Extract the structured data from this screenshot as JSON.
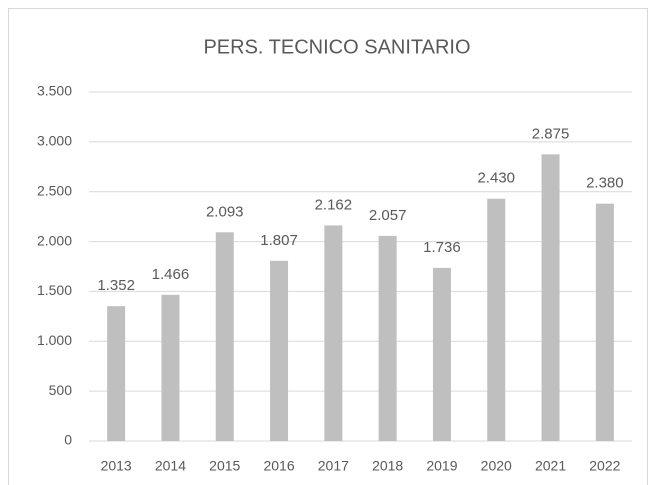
{
  "chart_data": {
    "type": "bar",
    "title": "PERS. TECNICO SANITARIO",
    "categories": [
      "2013",
      "2014",
      "2015",
      "2016",
      "2017",
      "2018",
      "2019",
      "2020",
      "2021",
      "2022"
    ],
    "values": [
      1352,
      1466,
      2093,
      1807,
      2162,
      2057,
      1736,
      2430,
      2875,
      2380
    ],
    "value_labels": [
      "1.352",
      "1.466",
      "2.093",
      "1.807",
      "2.162",
      "2.057",
      "1.736",
      "2.430",
      "2.875",
      "2.380"
    ],
    "color": "#bfbfbf",
    "ylim": [
      0,
      3500
    ],
    "yticks": [
      0,
      500,
      {
        "value": 1000,
        "label": "1.000"
      },
      {
        "value": 1500,
        "label": "1.500"
      },
      {
        "value": 2000,
        "label": "2.000"
      },
      {
        "value": 2500,
        "label": "2.500"
      },
      {
        "value": 3000,
        "label": "3.000"
      },
      {
        "value": 3500,
        "label": "3.500"
      }
    ],
    "grid": true
  }
}
